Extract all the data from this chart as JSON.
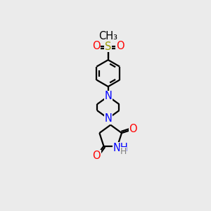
{
  "bg_color": "#ebebeb",
  "bond_color": "#000000",
  "N_color": "#0000ff",
  "O_color": "#ff0000",
  "S_color": "#999900",
  "line_width": 1.6,
  "font_size": 10.5,
  "fig_w": 3.0,
  "fig_h": 3.0,
  "dpi": 100,
  "xlim": [
    0,
    10
  ],
  "ylim": [
    0,
    10
  ]
}
